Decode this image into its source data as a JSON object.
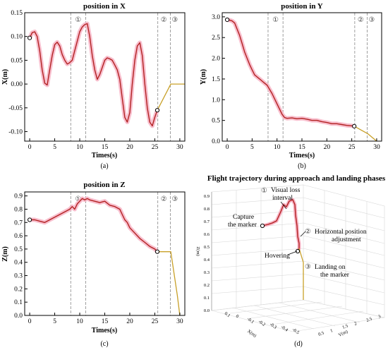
{
  "chart_data": [
    {
      "id": "a",
      "type": "line",
      "title": "position in X",
      "xlabel": "Times(s)",
      "ylabel": "X(m)",
      "caption": "(a)",
      "xlim": [
        -1,
        31
      ],
      "ylim": [
        -0.12,
        0.15
      ],
      "xticks": [
        "0",
        "5",
        "10",
        "15",
        "20",
        "25",
        "30"
      ],
      "yticks": [
        "-0.10",
        "-0.05",
        "0.00",
        "0.05",
        "0.10",
        "0.15"
      ],
      "ytick_values": [
        -0.1,
        -0.05,
        0.0,
        0.05,
        0.1,
        0.15
      ],
      "phase_lines": [
        8.2,
        11.2,
        25.6,
        28.1
      ],
      "phase_labels": [
        {
          "text": "①",
          "x": 9.7
        },
        {
          "text": "②",
          "x": 26.8
        },
        {
          "text": "③",
          "x": 29.0
        }
      ],
      "series": [
        {
          "role": "measured",
          "color": "#b22222",
          "x": [
            0,
            0.5,
            1.0,
            1.5,
            2.0,
            2.5,
            3.0,
            3.5,
            4.0,
            4.5,
            5.0,
            5.5,
            6.0,
            6.5,
            7.0,
            7.5,
            8.0,
            8.5,
            9.0,
            9.5,
            10.0,
            10.5,
            11.0,
            11.5,
            12.0,
            12.5,
            13.0,
            13.5,
            14.0,
            14.5,
            15.0,
            15.5,
            16.0,
            16.5,
            17.0,
            17.5,
            18.0,
            18.5,
            19.0,
            19.5,
            20.0,
            20.5,
            21.0,
            21.5,
            22.0,
            22.5,
            23.0,
            23.5,
            24.0,
            24.5,
            25.0,
            25.5
          ],
          "y": [
            0.097,
            0.108,
            0.11,
            0.1,
            0.07,
            0.03,
            0.002,
            -0.002,
            0.03,
            0.06,
            0.083,
            0.088,
            0.08,
            0.062,
            0.05,
            0.042,
            0.045,
            0.05,
            0.07,
            0.09,
            0.11,
            0.12,
            0.125,
            0.127,
            0.1,
            0.06,
            0.03,
            0.01,
            0.02,
            0.035,
            0.05,
            0.055,
            0.053,
            0.05,
            0.04,
            0.03,
            0.01,
            -0.03,
            -0.07,
            -0.08,
            -0.06,
            0.0,
            0.05,
            0.08,
            0.087,
            0.06,
            0.0,
            -0.05,
            -0.08,
            -0.088,
            -0.07,
            -0.055
          ]
        },
        {
          "role": "landing",
          "color": "#c8a028",
          "x": [
            25.5,
            28.2,
            31
          ],
          "y": [
            -0.055,
            0.0,
            0.0
          ]
        }
      ],
      "markers": [
        {
          "x": 0,
          "y": 0.097
        },
        {
          "x": 25.5,
          "y": -0.055
        }
      ]
    },
    {
      "id": "b",
      "type": "line",
      "title": "position in Y",
      "xlabel": "Times(s)",
      "ylabel": "Y(m)",
      "caption": "(b)",
      "xlim": [
        -1,
        31
      ],
      "ylim": [
        0,
        3.1
      ],
      "xticks": [
        "0",
        "5",
        "10",
        "15",
        "20",
        "25",
        "30"
      ],
      "yticks": [
        "0.0",
        "0.5",
        "1.0",
        "1.5",
        "2.0",
        "2.5",
        "3.0"
      ],
      "ytick_values": [
        0.0,
        0.5,
        1.0,
        1.5,
        2.0,
        2.5,
        3.0
      ],
      "phase_lines": [
        8.2,
        11.2,
        25.6,
        28.1
      ],
      "phase_labels": [
        {
          "text": "①",
          "x": 9.7
        },
        {
          "text": "②",
          "x": 26.8
        },
        {
          "text": "③",
          "x": 29.0
        }
      ],
      "series": [
        {
          "role": "measured",
          "color": "#b22222",
          "x": [
            0,
            0.5,
            1.0,
            1.5,
            2.0,
            2.5,
            3.0,
            3.5,
            4.0,
            4.5,
            5.0,
            5.5,
            6.0,
            6.5,
            7.0,
            7.5,
            8.0,
            9.0,
            10.0,
            11.0,
            11.5,
            12.0,
            13.0,
            14.0,
            15.0,
            16.0,
            17.0,
            18.0,
            19.0,
            20.0,
            21.0,
            22.0,
            23.0,
            24.0,
            25.0,
            25.5
          ],
          "y": [
            2.93,
            2.92,
            2.9,
            2.85,
            2.7,
            2.55,
            2.35,
            2.15,
            2.0,
            1.85,
            1.72,
            1.6,
            1.55,
            1.5,
            1.45,
            1.4,
            1.35,
            1.15,
            0.9,
            0.65,
            0.57,
            0.55,
            0.56,
            0.54,
            0.55,
            0.53,
            0.5,
            0.5,
            0.47,
            0.45,
            0.42,
            0.42,
            0.4,
            0.38,
            0.37,
            0.36
          ]
        },
        {
          "role": "landing",
          "color": "#c8a028",
          "x": [
            25.5,
            28.2,
            30
          ],
          "y": [
            0.36,
            0.18,
            0.0
          ]
        }
      ],
      "markers": [
        {
          "x": 0,
          "y": 2.93
        },
        {
          "x": 25.5,
          "y": 0.36
        }
      ]
    },
    {
      "id": "c",
      "type": "line",
      "title": "position in Z",
      "xlabel": "Times(s)",
      "ylabel": "Z(m)",
      "caption": "(c)",
      "xlim": [
        -1,
        31
      ],
      "ylim": [
        0,
        0.93
      ],
      "xticks": [
        "0",
        "5",
        "10",
        "15",
        "20",
        "25",
        "30"
      ],
      "yticks": [
        "0.0",
        "0.1",
        "0.2",
        "0.3",
        "0.4",
        "0.5",
        "0.6",
        "0.7",
        "0.8",
        "0.9"
      ],
      "ytick_values": [
        0.0,
        0.1,
        0.2,
        0.3,
        0.4,
        0.5,
        0.6,
        0.7,
        0.8,
        0.9
      ],
      "phase_lines": [
        8.2,
        11.2,
        25.6,
        28.1
      ],
      "phase_labels": [
        {
          "text": "①",
          "x": 9.7
        },
        {
          "text": "②",
          "x": 26.8
        },
        {
          "text": "③",
          "x": 29.0
        }
      ],
      "series": [
        {
          "role": "measured",
          "color": "#b22222",
          "x": [
            0,
            1.0,
            2.0,
            3.0,
            4.0,
            5.0,
            6.0,
            7.0,
            8.0,
            8.5,
            9.0,
            9.5,
            10.0,
            10.5,
            11.0,
            11.5,
            12.0,
            13.0,
            14.0,
            15.0,
            16.0,
            17.0,
            18.0,
            18.5,
            19.0,
            19.5,
            20.0,
            21.0,
            22.0,
            23.0,
            24.0,
            25.0,
            25.5
          ],
          "y": [
            0.72,
            0.72,
            0.71,
            0.7,
            0.72,
            0.74,
            0.76,
            0.78,
            0.8,
            0.82,
            0.8,
            0.84,
            0.86,
            0.88,
            0.87,
            0.88,
            0.87,
            0.86,
            0.85,
            0.86,
            0.83,
            0.82,
            0.8,
            0.76,
            0.72,
            0.7,
            0.66,
            0.62,
            0.58,
            0.55,
            0.52,
            0.5,
            0.48
          ]
        },
        {
          "role": "landing",
          "color": "#c8a028",
          "x": [
            25.5,
            28.2,
            29.5,
            30
          ],
          "y": [
            0.48,
            0.48,
            0.15,
            0.0
          ]
        }
      ],
      "markers": [
        {
          "x": 0,
          "y": 0.72
        },
        {
          "x": 25.5,
          "y": 0.48
        }
      ]
    },
    {
      "id": "d",
      "type": "line",
      "title": "Flight trajectory during approach and landing phases",
      "caption": "(d)",
      "axis_labels": {
        "z": "Z(m)",
        "x": "X(m)",
        "y": "Y(m)"
      },
      "z_ticks": [
        "0.9",
        "0.8",
        "0.7",
        "0.6",
        "0.5",
        "0.4",
        "0.3",
        "0.2",
        "0.1",
        "0.0"
      ],
      "z_tick_values": [
        0.9,
        0.8,
        0.7,
        0.6,
        0.5,
        0.4,
        0.3,
        0.2,
        0.1,
        0.0
      ],
      "x_ticks": [
        "0.1",
        "0",
        "-0.1",
        "-0.2",
        "-0.3",
        "-0.4",
        "-0.5"
      ],
      "y_ticks": [
        "0.5",
        "1",
        "1.5",
        "2",
        "2.5",
        "3"
      ],
      "annotations": [
        {
          "marker": "①",
          "text": [
            "Visual loss",
            "interval"
          ]
        },
        {
          "marker": "",
          "text": [
            "Capture",
            "the marker"
          ]
        },
        {
          "marker": "②",
          "text": [
            "Horizontal position",
            "adjustment"
          ]
        },
        {
          "marker": "",
          "text": [
            "Hovering"
          ]
        },
        {
          "marker": "③",
          "text": [
            "Landing on",
            "the marker"
          ]
        }
      ],
      "series": [
        {
          "role": "trajectory",
          "color": "#b22222"
        },
        {
          "role": "landing",
          "color": "#c8a028"
        }
      ]
    }
  ]
}
